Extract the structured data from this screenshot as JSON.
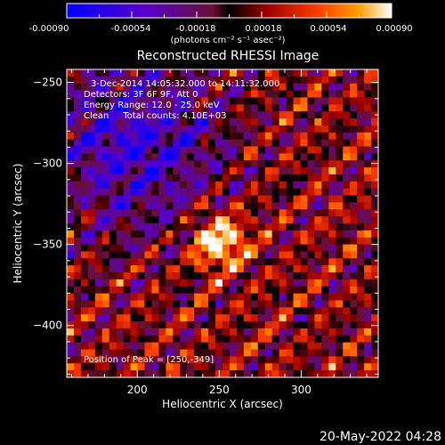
{
  "colorbar": {
    "tick_labels": [
      "-0.00090",
      "-0.00054",
      "-0.00018",
      "0.00018",
      "0.00054",
      "0.00090"
    ],
    "unit_label": "(photons cm⁻² s⁻¹ asec⁻²)",
    "range": [
      -0.0009,
      0.0009
    ]
  },
  "chart_data": {
    "type": "heatmap",
    "title": "Reconstructed RHESSI Image",
    "xlabel": "Heliocentric X (arcsec)",
    "ylabel": "Heliocentric Y (arcsec)",
    "xlim": [
      157,
      347
    ],
    "ylim": [
      -432,
      -242
    ],
    "x_ticks": [
      200,
      250,
      300
    ],
    "y_ticks": [
      -250,
      -300,
      -350,
      -400
    ],
    "peak_position": [
      250,
      -349
    ],
    "annotations": [
      "3-Dec-2014 14:05:32.000 to 14:11:32.000",
      "Detectors: 3F 6F 9F, Att 0",
      "Energy Range: 12.0 - 25.0 keV",
      "Clean     Total counts: 4.10E+03",
      "Position of Peak = [250,-349]"
    ],
    "footer_date": "20-May-2022 04:28"
  }
}
